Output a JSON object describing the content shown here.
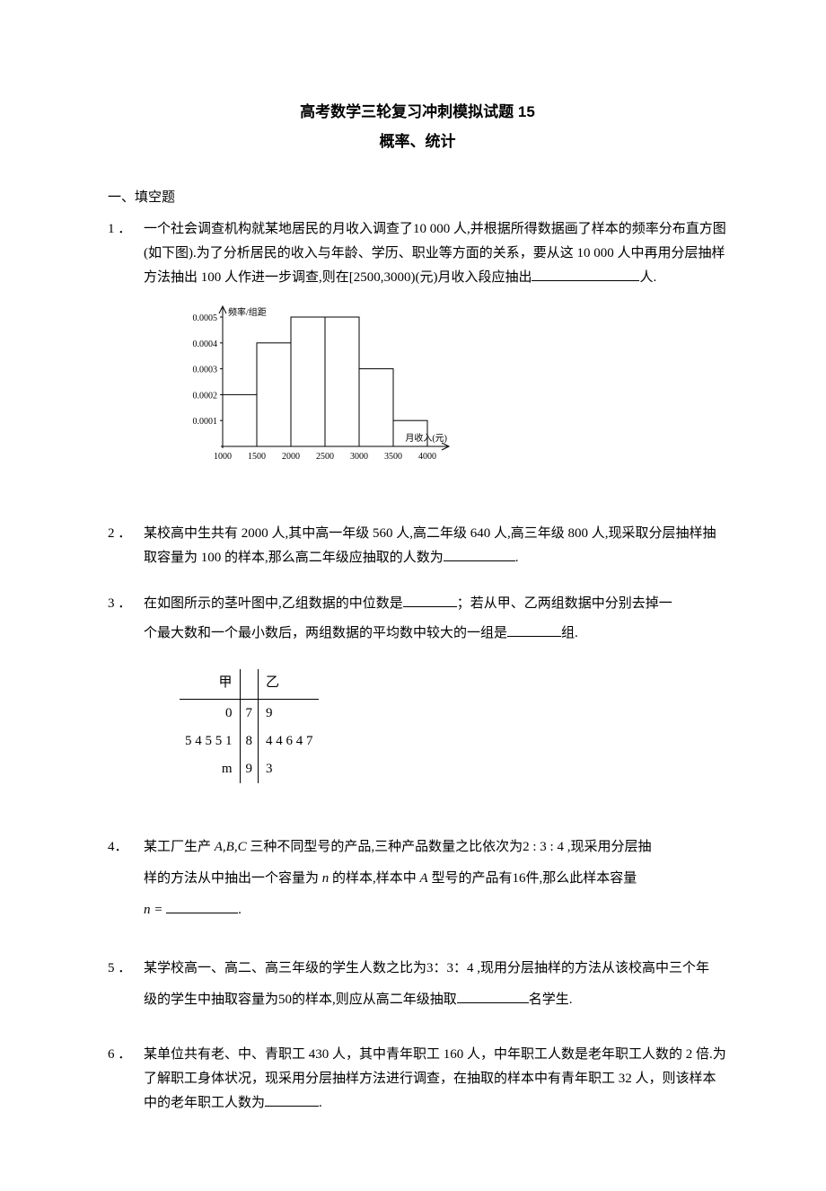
{
  "title": "高考数学三轮复习冲刺模拟试题 15",
  "subtitle": "概率、统计",
  "section_header": "一、填空题",
  "questions": {
    "q1": {
      "num": "1 ．",
      "text_before": "一个社会调查机构就某地居民的月收入调查了10 000 人,并根据所得数据画了样本的频率分布直方图(如下图).为了分析居民的收入与年龄、学历、职业等方面的关系，要从这 10 000 人中再用分层抽样方法抽出 100 人作进一步调查,则在[2500,3000)(元)月收入段应抽出",
      "text_after": "人.",
      "chart": {
        "y_label": "频率/组距",
        "x_label": "月收入(元)",
        "y_ticks": [
          "0.0001",
          "0.0002",
          "0.0003",
          "0.0004",
          "0.0005"
        ],
        "x_ticks": [
          "1000",
          "1500",
          "2000",
          "2500",
          "3000",
          "3500",
          "4000"
        ],
        "bars": [
          {
            "x_start": 1000,
            "x_end": 1500,
            "height": 0.0002
          },
          {
            "x_start": 1500,
            "x_end": 2000,
            "height": 0.0004
          },
          {
            "x_start": 2000,
            "x_end": 2500,
            "height": 0.0005
          },
          {
            "x_start": 2500,
            "x_end": 3000,
            "height": 0.0005
          },
          {
            "x_start": 3000,
            "x_end": 3500,
            "height": 0.0003
          },
          {
            "x_start": 3500,
            "x_end": 4000,
            "height": 0.0001
          }
        ],
        "colors": {
          "line": "#000000",
          "background": "#ffffff"
        },
        "font_size": 10
      }
    },
    "q2": {
      "num": "2 ．",
      "text_before": "某校高中生共有 2000 人,其中高一年级 560 人,高二年级 640 人,高三年级 800 人,现采取分层抽样抽取容量为 100 的样本,那么高二年级应抽取的人数为",
      "text_after": "."
    },
    "q3": {
      "num": "3 ．",
      "text_p1_before": "在如图所示的茎叶图中,乙组数据的中位数是",
      "text_p1_after": "；若从甲、乙两组数据中分别去掉一",
      "text_p2_before": "个最大数和一个最小数后，两组数据的平均数中较大的一组是",
      "text_p2_after": "组.",
      "stemleaf": {
        "header_left": "甲",
        "header_right": "乙",
        "rows": [
          {
            "left": "0",
            "stem": "7",
            "right": "9"
          },
          {
            "left": "5 4 5 5 1",
            "stem": "8",
            "right": "4 4 6 4 7"
          },
          {
            "left": "m",
            "stem": "9",
            "right": "3"
          }
        ]
      }
    },
    "q4": {
      "num": "4．",
      "text_part1": "某工厂生产 ",
      "text_abc": "A,B,C",
      "text_part2": " 三种不同型号的产品,三种产品数量之比依次为2 : 3 : 4 ,现采用分层抽",
      "text_part3": "样的方法从中抽出一个容量为 ",
      "text_n1": "n",
      "text_part4": " 的样本,样本中 ",
      "text_a": "A",
      "text_part5": " 型号的产品有16件,那么此样本容量",
      "text_eq": "n = ",
      "text_after": "."
    },
    "q5": {
      "num": "5 ．",
      "text_p1": "某学校高一、高二、高三年级的学生人数之比为3：3：4 ,现用分层抽样的方法从该校高中三个年",
      "text_p2_before": "级的学生中抽取容量为50的样本,则应从高二年级抽取",
      "text_p2_after": "名学生."
    },
    "q6": {
      "num": "6 ．",
      "text_before": "某单位共有老、中、青职工 430 人，其中青年职工 160 人，中年职工人数是老年职工人数的 2 倍.为了解职工身体状况，现采用分层抽样方法进行调查，在抽取的样本中有青年职工 32 人，则该样本中的老年职工人数为",
      "text_after": "."
    }
  }
}
